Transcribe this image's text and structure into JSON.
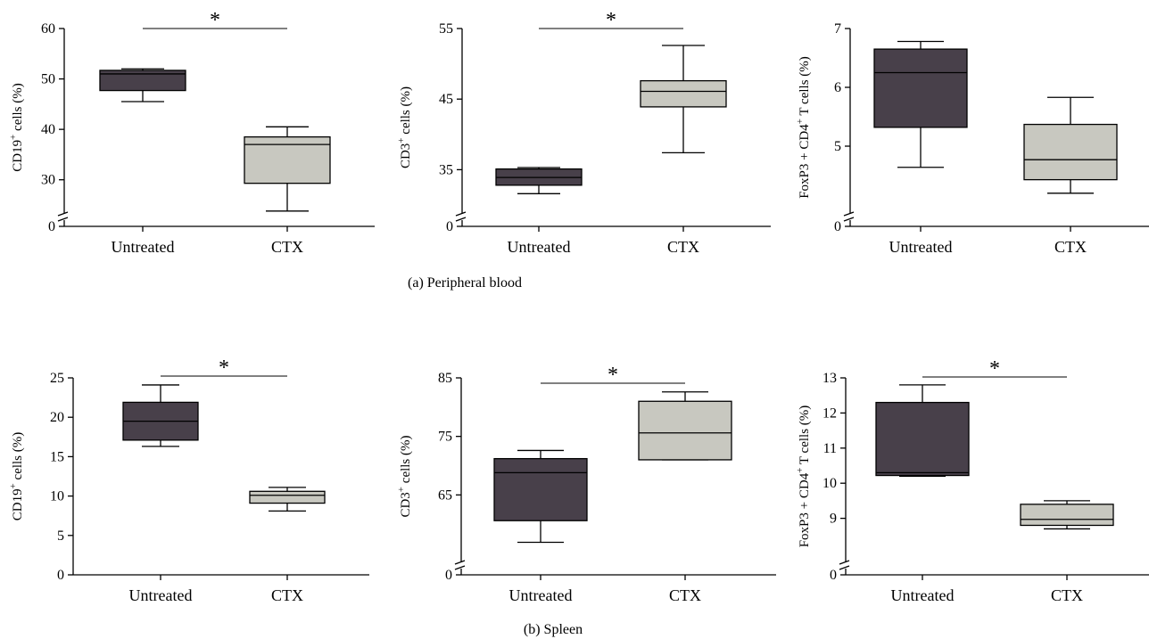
{
  "colors": {
    "untreated": "#48404a",
    "ctx": "#c8c8c0",
    "stroke": "#000000"
  },
  "captions": [
    "(a)  Peripheral blood",
    "(b)  Spleen"
  ],
  "chart_data": [
    {
      "type": "box",
      "categories": [
        "Untreated",
        "CTX"
      ],
      "ylabel_main": "CD19",
      "ylabel_sup": "+",
      "ylabel_rest": " cells (%)",
      "yticks": [
        "0",
        "30",
        "40",
        "50",
        "60"
      ],
      "ylim": [
        25,
        60
      ],
      "axis_break": true,
      "significance": "*",
      "boxes": [
        {
          "whisker_low": 45.5,
          "q1": 47.7,
          "median": 51,
          "q3": 51.7,
          "whisker_high": 52
        },
        {
          "whisker_low": 23.8,
          "q1": 29.3,
          "median": 37,
          "q3": 38.5,
          "whisker_high": 40.5
        }
      ]
    },
    {
      "type": "box",
      "categories": [
        "Untreated",
        "CTX"
      ],
      "ylabel_main": "CD3",
      "ylabel_sup": "+",
      "ylabel_rest": " cells (%)",
      "yticks": [
        "0",
        "35",
        "45",
        "55"
      ],
      "ylim": [
        30,
        55
      ],
      "axis_break": true,
      "significance": "*",
      "boxes": [
        {
          "whisker_low": 31.6,
          "q1": 32.8,
          "median": 33.9,
          "q3": 35.1,
          "whisker_high": 35.3
        },
        {
          "whisker_low": 37.4,
          "q1": 43.9,
          "median": 46.1,
          "q3": 47.6,
          "whisker_high": 52.6
        }
      ]
    },
    {
      "type": "box",
      "categories": [
        "Untreated",
        "CTX"
      ],
      "ylabel_main": "FoxP3 + CD4",
      "ylabel_sup": "+",
      "ylabel_rest": " T cells (%)",
      "yticks": [
        "0",
        "5",
        "6",
        "7"
      ],
      "ylim": [
        4,
        7
      ],
      "axis_break": true,
      "significance": "",
      "boxes": [
        {
          "whisker_low": 4.64,
          "q1": 5.32,
          "median": 6.25,
          "q3": 6.65,
          "whisker_high": 6.78
        },
        {
          "whisker_low": 4.2,
          "q1": 4.43,
          "median": 4.77,
          "q3": 5.37,
          "whisker_high": 5.83
        }
      ]
    },
    {
      "type": "box",
      "categories": [
        "Untreated",
        "CTX"
      ],
      "ylabel_main": "CD19",
      "ylabel_sup": "+",
      "ylabel_rest": " cells (%)",
      "yticks": [
        "0",
        "5",
        "10",
        "15",
        "20",
        "25"
      ],
      "ylim": [
        0,
        25
      ],
      "axis_break": false,
      "significance": "*",
      "boxes": [
        {
          "whisker_low": 16.3,
          "q1": 17.1,
          "median": 19.5,
          "q3": 21.9,
          "whisker_high": 24.1
        },
        {
          "whisker_low": 8.1,
          "q1": 9.1,
          "median": 10.1,
          "q3": 10.6,
          "whisker_high": 11.1
        }
      ]
    },
    {
      "type": "box",
      "categories": [
        "Untreated",
        "CTX"
      ],
      "ylabel_main": "CD3",
      "ylabel_sup": "+",
      "ylabel_rest": " cells (%)",
      "yticks": [
        "0",
        "65",
        "75",
        "85"
      ],
      "ylim": [
        55,
        85
      ],
      "axis_break": true,
      "significance": "*",
      "boxes": [
        {
          "whisker_low": 56.9,
          "q1": 60.6,
          "median": 68.8,
          "q3": 71.2,
          "whisker_high": 72.6
        },
        {
          "whisker_low": 71.0,
          "q1": 71.0,
          "median": 75.6,
          "q3": 81.0,
          "whisker_high": 82.6
        }
      ]
    },
    {
      "type": "box",
      "categories": [
        "Untreated",
        "CTX"
      ],
      "ylabel_main": "FoxP3 + CD4",
      "ylabel_sup": "+",
      "ylabel_rest": " T cells (%)",
      "yticks": [
        "0",
        "9",
        "10",
        "11",
        "12",
        "13"
      ],
      "ylim": [
        8,
        13
      ],
      "axis_break": true,
      "significance": "*",
      "boxes": [
        {
          "whisker_low": 10.2,
          "q1": 10.22,
          "median": 10.3,
          "q3": 12.3,
          "whisker_high": 12.8
        },
        {
          "whisker_low": 8.7,
          "q1": 8.8,
          "median": 8.97,
          "q3": 9.4,
          "whisker_high": 9.5
        }
      ]
    }
  ]
}
